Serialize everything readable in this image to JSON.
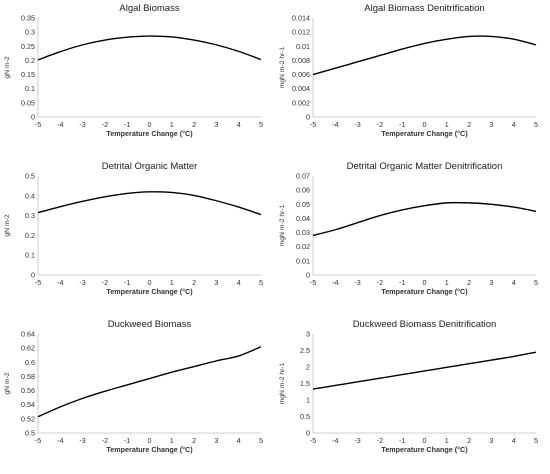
{
  "chart_data": [
    {
      "type": "line",
      "title": "Algal Biomass",
      "xlabel": "Temperature Change (°C)",
      "ylabel": "gN m-2",
      "xlim": [
        -5,
        5
      ],
      "ylim": [
        0,
        0.35
      ],
      "xticks": [
        "-5",
        "-4",
        "-3",
        "-2",
        "-1",
        "0",
        "1",
        "2",
        "3",
        "4",
        "5"
      ],
      "yticks": [
        "0",
        "0.05",
        "0.1",
        "0.15",
        "0.2",
        "0.25",
        "0.3",
        "0.35"
      ],
      "grid": false,
      "series": [
        {
          "x": [
            -5,
            -4,
            -3,
            -2,
            -1,
            0,
            1,
            2,
            3,
            4,
            5
          ],
          "y": [
            0.202,
            0.231,
            0.255,
            0.272,
            0.282,
            0.286,
            0.283,
            0.272,
            0.255,
            0.232,
            0.203
          ]
        }
      ]
    },
    {
      "type": "line",
      "title": "Algal Biomass Denitrification",
      "xlabel": "Temperature Change (°C)",
      "ylabel": "mgN m-2 hr-1",
      "xlim": [
        -5,
        5
      ],
      "ylim": [
        0,
        0.014
      ],
      "xticks": [
        "-5",
        "-4",
        "-3",
        "-2",
        "-1",
        "0",
        "1",
        "2",
        "3",
        "4",
        "5"
      ],
      "yticks": [
        "0",
        "0.002",
        "0.004",
        "0.006",
        "0.008",
        "0.01",
        "0.012",
        "0.014"
      ],
      "grid": false,
      "series": [
        {
          "x": [
            -5,
            -4,
            -3,
            -2,
            -1,
            0,
            1,
            2,
            3,
            4,
            5
          ],
          "y": [
            0.006,
            0.0069,
            0.0078,
            0.0087,
            0.0096,
            0.0104,
            0.011,
            0.0114,
            0.0114,
            0.011,
            0.0102
          ]
        }
      ]
    },
    {
      "type": "line",
      "title": "Detrital Organic Matter",
      "xlabel": "Temperature Change (°C)",
      "ylabel": "gN m-2",
      "xlim": [
        -5,
        5
      ],
      "ylim": [
        0,
        0.5
      ],
      "xticks": [
        "-5",
        "-4",
        "-3",
        "-2",
        "-1",
        "0",
        "1",
        "2",
        "3",
        "4",
        "5"
      ],
      "yticks": [
        "0",
        "0.1",
        "0.2",
        "0.3",
        "0.4",
        "0.5"
      ],
      "grid": false,
      "series": [
        {
          "x": [
            -5,
            -4,
            -3,
            -2,
            -1,
            0,
            1,
            2,
            3,
            4,
            5
          ],
          "y": [
            0.315,
            0.345,
            0.372,
            0.395,
            0.412,
            0.42,
            0.417,
            0.402,
            0.375,
            0.343,
            0.305
          ]
        }
      ]
    },
    {
      "type": "line",
      "title": "Detrital Organic Matter Denitrification",
      "xlabel": "Temperature Change (°C)",
      "ylabel": "mgN m-2 hr-1",
      "xlim": [
        -5,
        5
      ],
      "ylim": [
        0,
        0.07
      ],
      "xticks": [
        "-5",
        "-4",
        "-3",
        "-2",
        "-1",
        "0",
        "1",
        "2",
        "3",
        "4",
        "5"
      ],
      "yticks": [
        "0",
        "0.01",
        "0.02",
        "0.03",
        "0.04",
        "0.05",
        "0.06",
        "0.07"
      ],
      "grid": false,
      "series": [
        {
          "x": [
            -5,
            -4,
            -3,
            -2,
            -1,
            0,
            1,
            2,
            3,
            4,
            5
          ],
          "y": [
            0.028,
            0.032,
            0.037,
            0.042,
            0.046,
            0.049,
            0.051,
            0.051,
            0.05,
            0.048,
            0.045
          ]
        }
      ]
    },
    {
      "type": "line",
      "title": "Duckweed Biomass",
      "xlabel": "Temperature Change (°C)",
      "ylabel": "gN m-2",
      "xlim": [
        -5,
        5
      ],
      "ylim": [
        0.5,
        0.64
      ],
      "xticks": [
        "-5",
        "-4",
        "-3",
        "-2",
        "-1",
        "0",
        "1",
        "2",
        "3",
        "4",
        "5"
      ],
      "yticks": [
        "0.5",
        "0.52",
        "0.54",
        "0.56",
        "0.58",
        "0.6",
        "0.62",
        "0.64"
      ],
      "grid": false,
      "series": [
        {
          "x": [
            -5,
            -4,
            -3,
            -2,
            -1,
            0,
            1,
            2,
            3,
            4,
            5
          ],
          "y": [
            0.523,
            0.537,
            0.549,
            0.559,
            0.568,
            0.577,
            0.586,
            0.594,
            0.602,
            0.609,
            0.622
          ]
        }
      ]
    },
    {
      "type": "line",
      "title": "Duckweed Biomass Denitrification",
      "xlabel": "Temperature Change (°C)",
      "ylabel": "mgN m-2 hr-1",
      "xlim": [
        -5,
        5
      ],
      "ylim": [
        0,
        3
      ],
      "xticks": [
        "-5",
        "-4",
        "-3",
        "-2",
        "-1",
        "0",
        "1",
        "2",
        "3",
        "4",
        "5"
      ],
      "yticks": [
        "0",
        "0.5",
        "1",
        "1.5",
        "2",
        "2.5",
        "3"
      ],
      "grid": false,
      "series": [
        {
          "x": [
            -5,
            -4,
            -3,
            -2,
            -1,
            0,
            1,
            2,
            3,
            4,
            5
          ],
          "y": [
            1.33,
            1.44,
            1.55,
            1.66,
            1.77,
            1.88,
            1.99,
            2.1,
            2.21,
            2.32,
            2.45
          ]
        }
      ]
    }
  ]
}
